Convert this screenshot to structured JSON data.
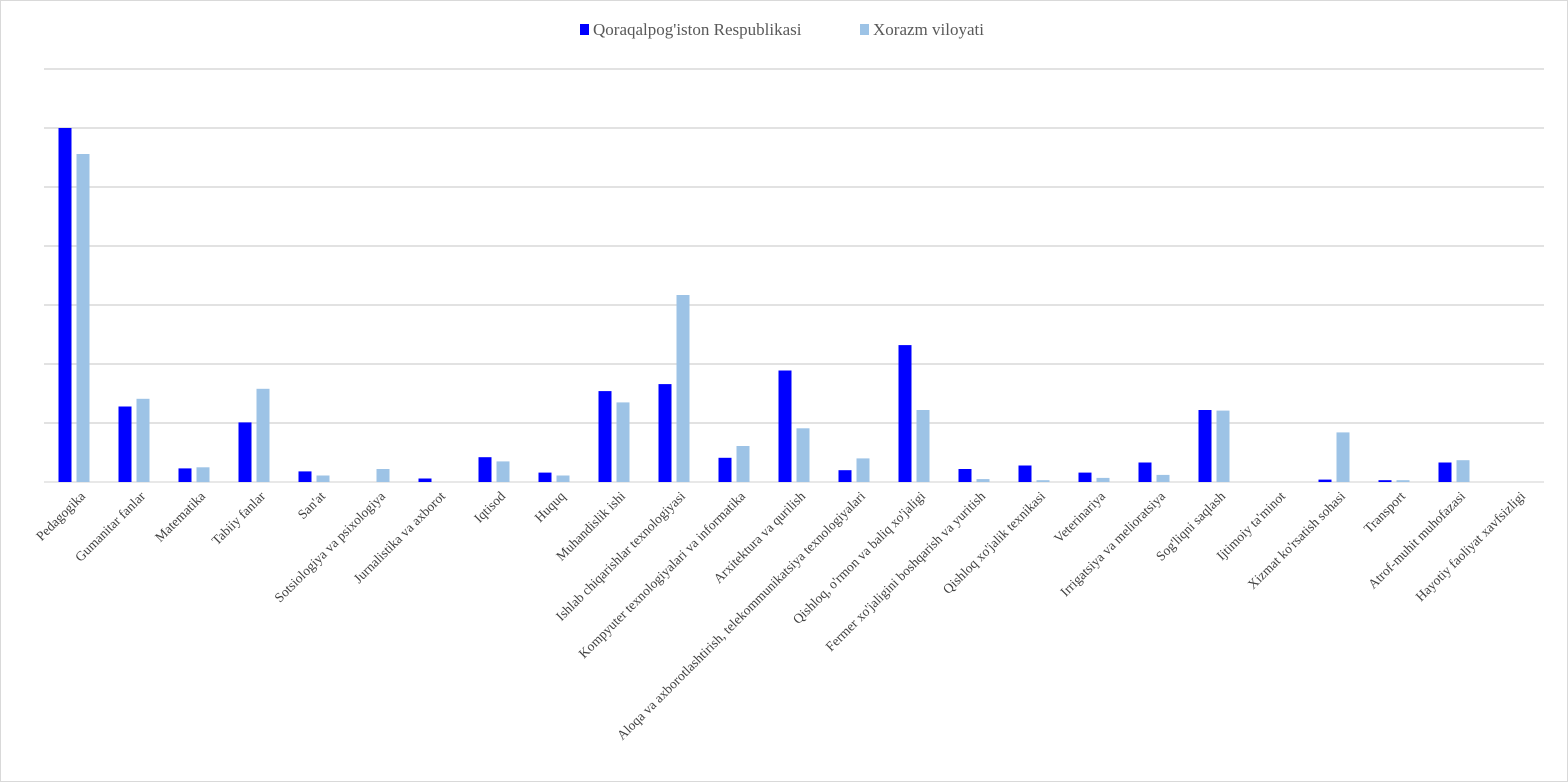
{
  "chart_data": {
    "type": "bar",
    "title": "",
    "xlabel": "",
    "ylabel": "",
    "ylim": [
      0,
      7
    ],
    "grid": true,
    "legend_position": "top-center",
    "categories": [
      "Pedagogika",
      "Gumanitar fanlar",
      "Matematika",
      "Tabiiy fanlar",
      "San'at",
      "Sotsiologiya va psixologiya",
      "Jurnalistika va axborot",
      "Iqtisod",
      "Huquq",
      "Muhandislik ishi",
      "Ishlab chiqarishlar texnologiyasi",
      "Kompyuter texnologiyalari va informatika",
      "Arxitektura va qurilish",
      "Aloqa va axborotlashtirish, telekommunikatsiya texnologiyalari",
      "Qishloq, o'rmon va baliq xo'jaligi",
      "Fermer xo'jaligini boshqarish va yuritish",
      "Qishloq xo'jalik texnikasi",
      "Veterinariya",
      "Irrigatsiya va melioratsiya",
      "Sog'liqni saqlash",
      "Ijtimoiy ta'minot",
      "Xizmat ko'rsatish sohasi",
      "Transport",
      "Atrof-muhit muhofazasi",
      "Hayotiy faoliyat xavfsizligi"
    ],
    "series": [
      {
        "name": "Qoraqalpog'iston Respublikasi",
        "color": "#0000ff",
        "values": [
          6.0,
          1.28,
          0.23,
          1.01,
          0.18,
          0.0,
          0.06,
          0.42,
          0.16,
          1.54,
          1.66,
          0.41,
          1.89,
          0.2,
          2.32,
          0.22,
          0.28,
          0.16,
          0.33,
          1.22,
          0.0,
          0.04,
          0.03,
          0.33,
          0.0
        ]
      },
      {
        "name": "Xorazm viloyati",
        "color": "#9dc3e6",
        "values": [
          5.56,
          1.41,
          0.25,
          1.58,
          0.11,
          0.22,
          0.0,
          0.35,
          0.11,
          1.35,
          3.17,
          0.61,
          0.91,
          0.4,
          1.22,
          0.05,
          0.03,
          0.07,
          0.12,
          1.21,
          0.0,
          0.84,
          0.03,
          0.37,
          0.0
        ]
      }
    ]
  }
}
